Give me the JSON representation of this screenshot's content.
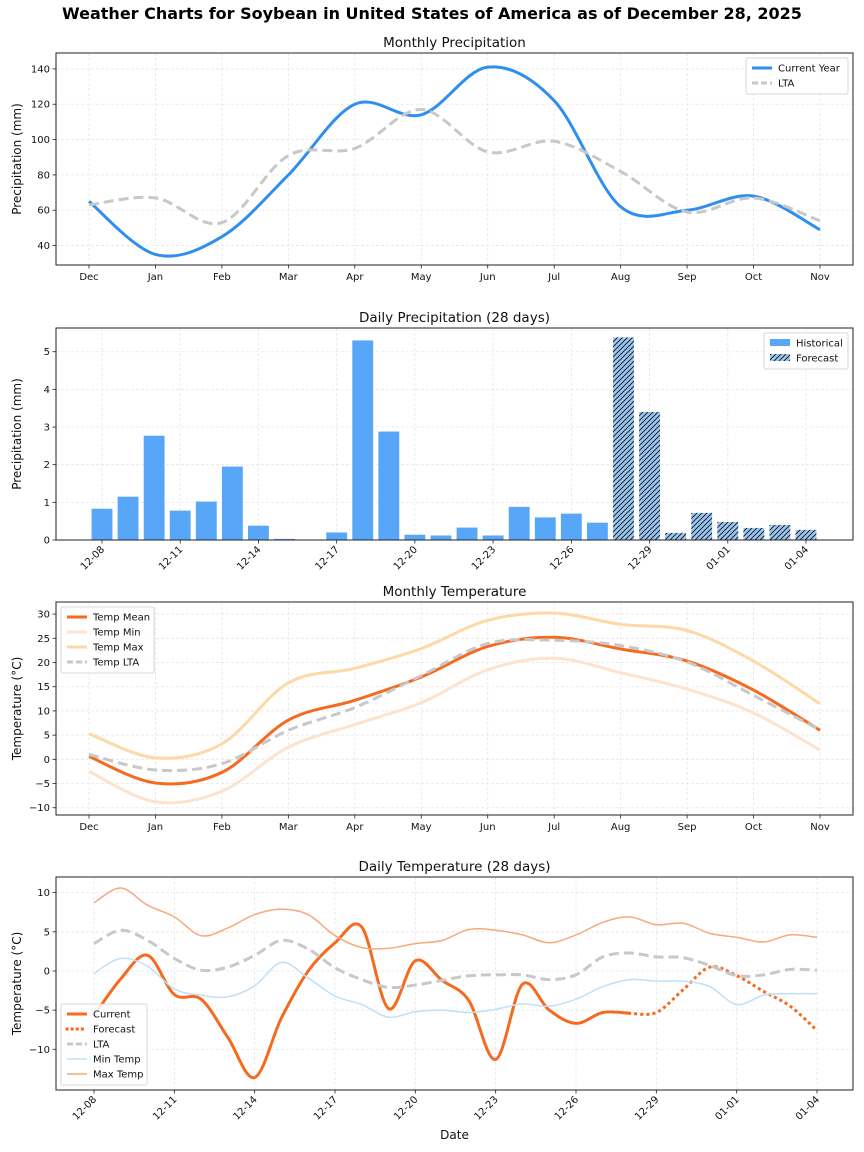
{
  "figure": {
    "suptitle": "Weather Charts for Soybean in United States of America as of December 28, 2025"
  },
  "chart_data": [
    {
      "id": "monthly-precip",
      "type": "line",
      "title": "Monthly Precipitation",
      "xlabel": "",
      "ylabel": "Precipitation (mm)",
      "categories": [
        "Dec",
        "Jan",
        "Feb",
        "Mar",
        "Apr",
        "May",
        "Jun",
        "Jul",
        "Aug",
        "Sep",
        "Oct",
        "Nov"
      ],
      "ylim": [
        29,
        149
      ],
      "yticks": [
        40,
        60,
        80,
        100,
        120,
        140
      ],
      "grid": true,
      "legend": "top-right",
      "series": [
        {
          "name": "Current Year",
          "color": "#2f8ff0",
          "style": "solid",
          "values": [
            65,
            35,
            45,
            80,
            120,
            114,
            141,
            122,
            62,
            60,
            68,
            49
          ]
        },
        {
          "name": "LTA",
          "color": "#c8c8c8",
          "style": "dashed",
          "values": [
            63,
            67,
            53,
            91,
            95,
            117,
            93,
            99,
            82,
            59,
            67,
            54
          ]
        }
      ]
    },
    {
      "id": "daily-precip",
      "type": "bar",
      "title": "Daily Precipitation (28 days)",
      "xlabel": "",
      "ylabel": "Precipitation (mm)",
      "ylim": [
        0,
        5.63
      ],
      "yticks": [
        0,
        1,
        2,
        3,
        4,
        5
      ],
      "xtick_labels": [
        "12-08",
        "12-11",
        "12-14",
        "12-17",
        "12-20",
        "12-23",
        "12-26",
        "12-29",
        "01-01",
        "01-04"
      ],
      "grid": true,
      "legend": "top-right",
      "categories": [
        "12-08",
        "12-09",
        "12-10",
        "12-11",
        "12-12",
        "12-13",
        "12-14",
        "12-15",
        "12-16",
        "12-17",
        "12-18",
        "12-19",
        "12-20",
        "12-21",
        "12-22",
        "12-23",
        "12-24",
        "12-25",
        "12-26",
        "12-27",
        "12-28",
        "12-29",
        "12-30",
        "12-31",
        "01-01",
        "01-02",
        "01-03",
        "01-04"
      ],
      "series": [
        {
          "name": "Historical",
          "color": "#58a6f8",
          "hatch": false,
          "values": [
            0.83,
            1.15,
            2.77,
            0.78,
            1.02,
            1.95,
            0.38,
            0.03,
            0,
            0.2,
            5.3,
            2.88,
            0.14,
            0.12,
            0.33,
            0.12,
            0.88,
            0.6,
            0.7,
            0.46,
            null,
            null,
            null,
            null,
            null,
            null,
            null,
            null
          ]
        },
        {
          "name": "Forecast",
          "color": "#9ac7f4",
          "hatch": true,
          "values": [
            null,
            null,
            null,
            null,
            null,
            null,
            null,
            null,
            null,
            null,
            null,
            null,
            null,
            null,
            null,
            null,
            null,
            null,
            null,
            null,
            5.38,
            3.4,
            0.19,
            0.72,
            0.48,
            0.32,
            0.4,
            0.27
          ]
        }
      ]
    },
    {
      "id": "monthly-temp",
      "type": "line",
      "title": "Monthly Temperature",
      "xlabel": "",
      "ylabel": "Temperature (°C)",
      "categories": [
        "Dec",
        "Jan",
        "Feb",
        "Mar",
        "Apr",
        "May",
        "Jun",
        "Jul",
        "Aug",
        "Sep",
        "Oct",
        "Nov"
      ],
      "ylim": [
        -11.5,
        32.5
      ],
      "yticks": [
        -10,
        -5,
        0,
        5,
        10,
        15,
        20,
        25,
        30
      ],
      "grid": true,
      "legend": "top-left",
      "series": [
        {
          "name": "Temp Mean",
          "color": "#f56a1e",
          "style": "solid",
          "width": 3,
          "values": [
            0.6,
            -4.9,
            -2.7,
            8.1,
            12.2,
            17.0,
            23.3,
            25.2,
            22.8,
            20.3,
            14.3,
            6.0
          ]
        },
        {
          "name": "Temp Min",
          "color": "#fde3cf",
          "style": "solid",
          "width": 3,
          "values": [
            -2.5,
            -8.8,
            -6.6,
            2.5,
            7.2,
            11.7,
            18.5,
            20.9,
            17.9,
            14.5,
            9.6,
            1.9
          ]
        },
        {
          "name": "Temp Max",
          "color": "#fcd9a6",
          "style": "solid",
          "width": 3,
          "values": [
            5.3,
            0.3,
            3.2,
            15.8,
            18.8,
            22.9,
            28.7,
            30.2,
            27.9,
            26.6,
            20.3,
            11.5
          ]
        },
        {
          "name": "Temp LTA",
          "color": "#c8c8c8",
          "style": "dashed",
          "width": 3,
          "values": [
            1.0,
            -2.2,
            -0.9,
            6.0,
            10.7,
            17.3,
            23.9,
            24.6,
            23.5,
            20.1,
            13.2,
            6.1
          ]
        }
      ]
    },
    {
      "id": "daily-temp",
      "type": "line",
      "title": "Daily Temperature (28 days)",
      "xlabel": "Date",
      "ylabel": "Temperature (°C)",
      "ylim": [
        -15.2,
        12
      ],
      "yticks": [
        -10,
        -5,
        0,
        5,
        10
      ],
      "xtick_labels": [
        "12-08",
        "12-11",
        "12-14",
        "12-17",
        "12-20",
        "12-23",
        "12-26",
        "12-29",
        "01-01",
        "01-04"
      ],
      "grid": true,
      "legend": "lower-left",
      "categories": [
        "12-08",
        "12-09",
        "12-10",
        "12-11",
        "12-12",
        "12-13",
        "12-14",
        "12-15",
        "12-16",
        "12-17",
        "12-18",
        "12-19",
        "12-20",
        "12-21",
        "12-22",
        "12-23",
        "12-24",
        "12-25",
        "12-26",
        "12-27",
        "12-28",
        "12-29",
        "12-30",
        "12-31",
        "01-01",
        "01-02",
        "01-03",
        "01-04"
      ],
      "series": [
        {
          "name": "Current",
          "color": "#f56a1e",
          "style": "solid",
          "width": 3,
          "values": [
            -5.7,
            -1.0,
            2.0,
            -3.0,
            -3.6,
            -8.5,
            -13.6,
            -6.0,
            0.0,
            3.6,
            5.6,
            -4.8,
            1.3,
            -1.2,
            -3.8,
            -11.3,
            -1.7,
            -5.0,
            -6.7,
            -5.3,
            -5.4,
            null,
            null,
            null,
            null,
            null,
            null,
            null
          ]
        },
        {
          "name": "Forecast",
          "color": "#f56a1e",
          "style": "dotted",
          "width": 3,
          "values": [
            null,
            null,
            null,
            null,
            null,
            null,
            null,
            null,
            null,
            null,
            null,
            null,
            null,
            null,
            null,
            null,
            null,
            null,
            null,
            null,
            -5.4,
            -5.3,
            -2.4,
            0.5,
            -0.6,
            -2.6,
            -4.5,
            -7.6
          ]
        },
        {
          "name": "LTA",
          "color": "#c8c8c8",
          "style": "dashed",
          "width": 3,
          "values": [
            3.5,
            5.2,
            3.9,
            1.6,
            0.1,
            0.5,
            2.0,
            3.9,
            2.8,
            0.4,
            -1.1,
            -2.1,
            -1.8,
            -1.2,
            -0.6,
            -0.5,
            -0.5,
            -1.1,
            -0.5,
            1.8,
            2.3,
            1.8,
            1.7,
            0.7,
            -0.6,
            -0.5,
            0.2,
            0.1
          ]
        },
        {
          "name": "Min Temp",
          "color": "#bde0fb",
          "style": "solid",
          "width": 1.5,
          "values": [
            -0.3,
            1.6,
            0.6,
            -2.3,
            -3.1,
            -3.3,
            -1.9,
            1.1,
            -0.9,
            -3.2,
            -4.3,
            -5.9,
            -5.2,
            -5.0,
            -5.3,
            -4.9,
            -4.2,
            -4.5,
            -3.6,
            -2.0,
            -1.1,
            -1.3,
            -1.3,
            -2.0,
            -4.3,
            -3.1,
            -2.9,
            -2.9
          ]
        },
        {
          "name": "Max Temp",
          "color": "#f9a87a",
          "style": "solid",
          "width": 1.5,
          "values": [
            8.7,
            10.6,
            8.4,
            6.9,
            4.5,
            5.5,
            7.2,
            7.9,
            7.2,
            4.5,
            3.0,
            2.9,
            3.5,
            3.9,
            5.3,
            5.2,
            4.6,
            3.6,
            4.6,
            6.2,
            6.9,
            5.9,
            6.1,
            4.8,
            4.3,
            3.7,
            4.6,
            4.3
          ]
        }
      ]
    }
  ]
}
